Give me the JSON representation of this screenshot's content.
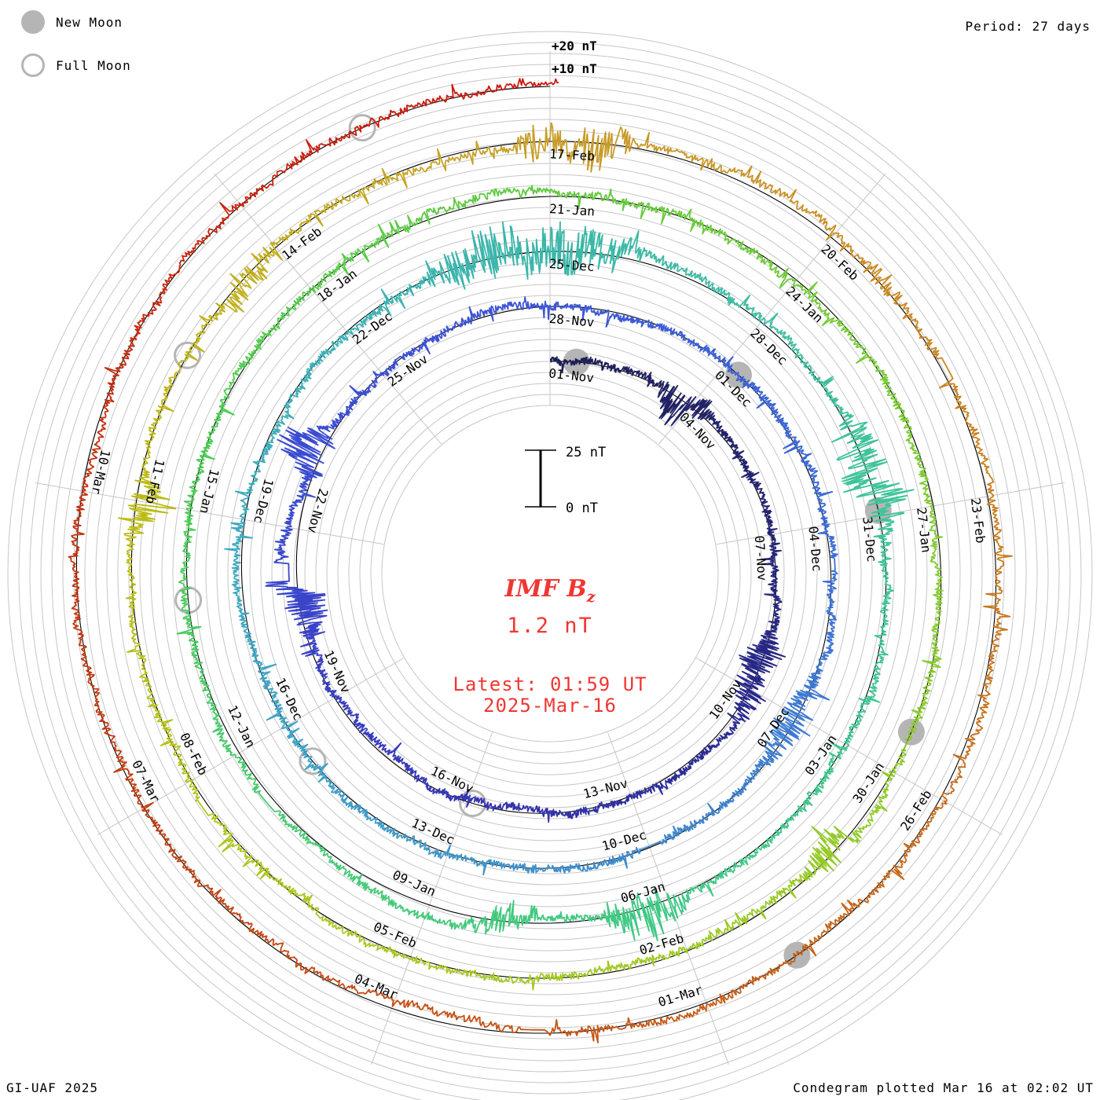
{
  "legend": {
    "new_moon": "New Moon",
    "full_moon": "Full Moon"
  },
  "top_right": {
    "period": "Period: 27 days"
  },
  "footer": {
    "credit": "GI-UAF 2025",
    "plotted": "Condegram plotted Mar 16 at 02:02 UT"
  },
  "center": {
    "title_main": "IMF B",
    "title_sub": "z",
    "current_value": "1.2 nT",
    "latest_time": "Latest: 01:59 UT",
    "latest_date": "2025-Mar-16"
  },
  "radial_axis": {
    "plus20": "+20 nT",
    "plus10": "+10 nT",
    "scale_max": "25 nT",
    "scale_min": "0 nT"
  },
  "chart_data": {
    "type": "line",
    "subtype": "polar-spiral-condegram",
    "title": "IMF Bz condegram",
    "series_name": "IMF Bz (nT)",
    "period_days": 27,
    "start_date": "2024-11-01",
    "end_day_offset": 135.083,
    "latest": {
      "value_nT": 1.2,
      "time": "01:59 UT",
      "date": "2025-Mar-16"
    },
    "radial_scale": {
      "units": "nT",
      "ring_span_nT": 25,
      "grid_interval_nT": 5,
      "labeled_offsets": [
        "+10 nT",
        "+20 nT"
      ],
      "scale_bar": [
        0,
        25
      ]
    },
    "label_interval_days": 3,
    "spoke_count": 9,
    "ring_date_labels": [
      "01-Nov",
      "04-Nov",
      "07-Nov",
      "10-Nov",
      "13-Nov",
      "16-Nov",
      "19-Nov",
      "22-Nov",
      "25-Nov",
      "28-Nov",
      "01-Dec",
      "04-Dec",
      "07-Dec",
      "10-Dec",
      "13-Dec",
      "16-Dec",
      "19-Dec",
      "22-Dec",
      "25-Dec",
      "28-Dec",
      "31-Dec",
      "03-Jan",
      "06-Jan",
      "09-Jan",
      "12-Jan",
      "15-Jan",
      "18-Jan",
      "21-Jan",
      "24-Jan",
      "27-Jan",
      "30-Jan",
      "02-Feb",
      "05-Feb",
      "08-Feb",
      "11-Feb",
      "14-Feb",
      "17-Feb",
      "20-Feb",
      "23-Feb",
      "26-Feb",
      "01-Mar",
      "04-Mar",
      "07-Mar",
      "10-Mar"
    ],
    "new_moon_datetimes": [
      "2024-11-01T12:47Z",
      "2024-12-01T06:21Z",
      "2024-12-30T22:27Z",
      "2025-01-29T12:36Z",
      "2025-02-28T00:45Z"
    ],
    "full_moon_datetimes": [
      "2024-11-15T21:28Z",
      "2024-12-15T09:02Z",
      "2025-01-13T22:27Z",
      "2025-02-12T13:53Z",
      "2025-03-14T06:55Z"
    ],
    "color_gradient_stops": [
      [
        0,
        "#1e1e55"
      ],
      [
        9,
        "#28288a"
      ],
      [
        15,
        "#3434b4"
      ],
      [
        21,
        "#3a49cf"
      ],
      [
        27,
        "#3c55d6"
      ],
      [
        33,
        "#3c6cd6"
      ],
      [
        39,
        "#3e88cc"
      ],
      [
        45,
        "#3fa3c6"
      ],
      [
        51,
        "#3cb2b4"
      ],
      [
        54,
        "#3ab7a8"
      ],
      [
        60,
        "#3fc49a"
      ],
      [
        66,
        "#3fc986"
      ],
      [
        72,
        "#44cb6c"
      ],
      [
        75,
        "#49cc55"
      ],
      [
        81,
        "#62cb3f"
      ],
      [
        87,
        "#7ecb30"
      ],
      [
        93,
        "#9eca22"
      ],
      [
        99,
        "#b3c31b"
      ],
      [
        102,
        "#bcbc16"
      ],
      [
        105,
        "#c2ad1d"
      ],
      [
        108,
        "#c89d28"
      ],
      [
        111,
        "#c98e23"
      ],
      [
        114,
        "#c97e1f"
      ],
      [
        117,
        "#c66c1b"
      ],
      [
        120,
        "#c55c15"
      ],
      [
        126,
        "#c43d0f"
      ],
      [
        129,
        "#c52f0d"
      ],
      [
        135,
        "#cd1710"
      ]
    ],
    "colors": {
      "grid": "#c6c6c6",
      "baseline": "#000000",
      "moon": "#b5b5b5",
      "text": "#000000",
      "accent_red": "#ef3732"
    }
  }
}
